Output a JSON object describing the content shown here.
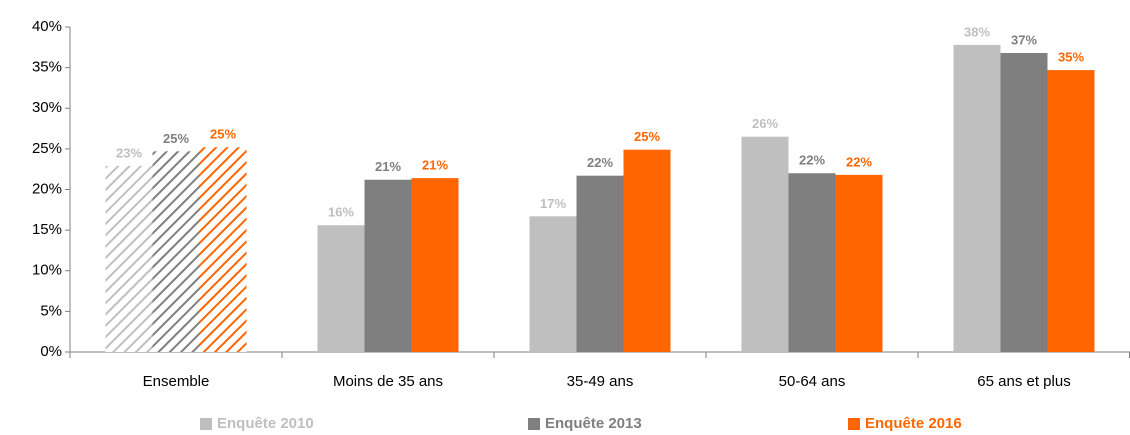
{
  "chart_data": {
    "type": "bar",
    "categories": [
      "Ensemble",
      "Moins de 35 ans",
      "35-49 ans",
      "50-64 ans",
      "65 ans et plus"
    ],
    "series": [
      {
        "name": "Enquête 2010",
        "color": "#bfbfbf",
        "values": [
          22.9,
          15.6,
          16.7,
          26.5,
          37.8
        ],
        "value_labels": [
          "23%",
          "16%",
          "17%",
          "26%",
          "38%"
        ]
      },
      {
        "name": "Enquête 2013",
        "color": "#7f7f7f",
        "values": [
          24.7,
          21.2,
          21.7,
          22.0,
          36.8
        ],
        "value_labels": [
          "25%",
          "21%",
          "22%",
          "22%",
          "37%"
        ]
      },
      {
        "name": "Enquête 2016",
        "color": "#ff6600",
        "values": [
          25.2,
          21.4,
          24.9,
          21.8,
          34.7
        ],
        "value_labels": [
          "25%",
          "21%",
          "25%",
          "22%",
          "35%"
        ]
      }
    ],
    "hatch": [
      true,
      false,
      false,
      false,
      false
    ],
    "ylim": [
      0,
      40
    ],
    "yticks": [
      {
        "value": 0,
        "label": "0%"
      },
      {
        "value": 5,
        "label": "5%"
      },
      {
        "value": 10,
        "label": "10%"
      },
      {
        "value": 15,
        "label": "15%"
      },
      {
        "value": 20,
        "label": "20%"
      },
      {
        "value": 25,
        "label": "25%"
      },
      {
        "value": 30,
        "label": "30%"
      },
      {
        "value": 35,
        "label": "35%"
      },
      {
        "value": 40,
        "label": "40%"
      }
    ],
    "grid": false,
    "legend": "bottom"
  }
}
